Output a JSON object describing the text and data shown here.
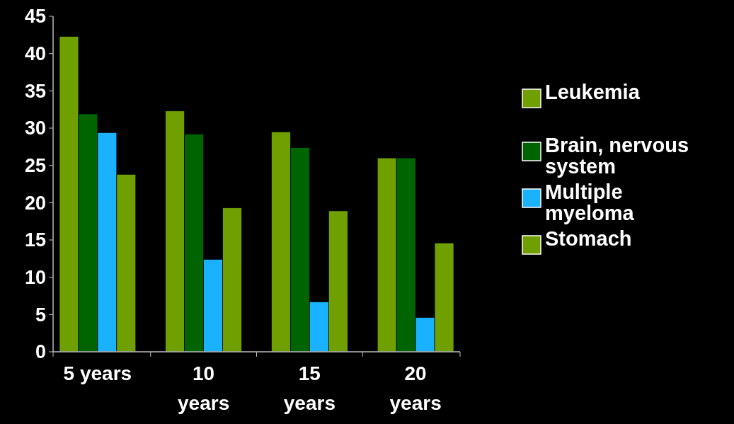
{
  "chart_data": {
    "type": "bar",
    "categories": [
      "5 years",
      "10 years",
      "15 years",
      "20 years"
    ],
    "series": [
      {
        "name": "Leukemia",
        "color": "#6fa000",
        "values": [
          42.3,
          32.3,
          29.5,
          26
        ]
      },
      {
        "name": "Brain, nervous system",
        "color": "#006400",
        "values": [
          31.9,
          29.2,
          27.4,
          26
        ]
      },
      {
        "name": "Multiple myeloma",
        "color": "#1ab2ff",
        "values": [
          29.4,
          12.4,
          6.7,
          4.6
        ]
      },
      {
        "name": "Stomach",
        "color": "#6fa000",
        "values": [
          23.8,
          19.3,
          18.9,
          14.6
        ]
      }
    ],
    "ylim": [
      0,
      45
    ],
    "yticks": [
      0,
      5,
      10,
      15,
      20,
      25,
      30,
      35,
      40,
      45
    ],
    "grid": false,
    "legend": "right"
  }
}
